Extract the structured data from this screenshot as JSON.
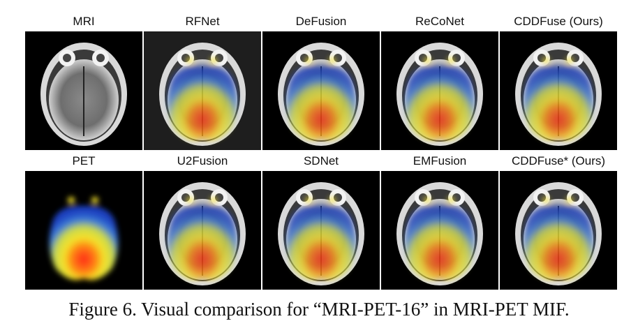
{
  "figure": {
    "rows": [
      {
        "panels": [
          {
            "label": "MRI",
            "name": "mri",
            "kind": "mri",
            "bg": "#000000"
          },
          {
            "label": "RFNet",
            "name": "rfnet",
            "kind": "fused",
            "bg": "#1e1e1e"
          },
          {
            "label": "DeFusion",
            "name": "defusion",
            "kind": "fused",
            "bg": "#000000"
          },
          {
            "label": "ReCoNet",
            "name": "reconet",
            "kind": "fused",
            "bg": "#000000"
          },
          {
            "label": "CDDFuse (Ours)",
            "name": "cddfuse",
            "kind": "fused",
            "bg": "#000000"
          }
        ]
      },
      {
        "panels": [
          {
            "label": "PET",
            "name": "pet",
            "kind": "pet",
            "bg": "#000000"
          },
          {
            "label": "U2Fusion",
            "name": "u2fusion",
            "kind": "fused",
            "bg": "#000000"
          },
          {
            "label": "SDNet",
            "name": "sdnet",
            "kind": "fused",
            "bg": "#000000"
          },
          {
            "label": "EMFusion",
            "name": "emfusion",
            "kind": "fused",
            "bg": "#000000"
          },
          {
            "label": "CDDFuse* (Ours)",
            "name": "cddfuse-star",
            "kind": "fused",
            "bg": "#000000"
          }
        ]
      }
    ]
  },
  "caption": "Figure 6. Visual comparison for “MRI-PET-16” in MRI-PET MIF."
}
